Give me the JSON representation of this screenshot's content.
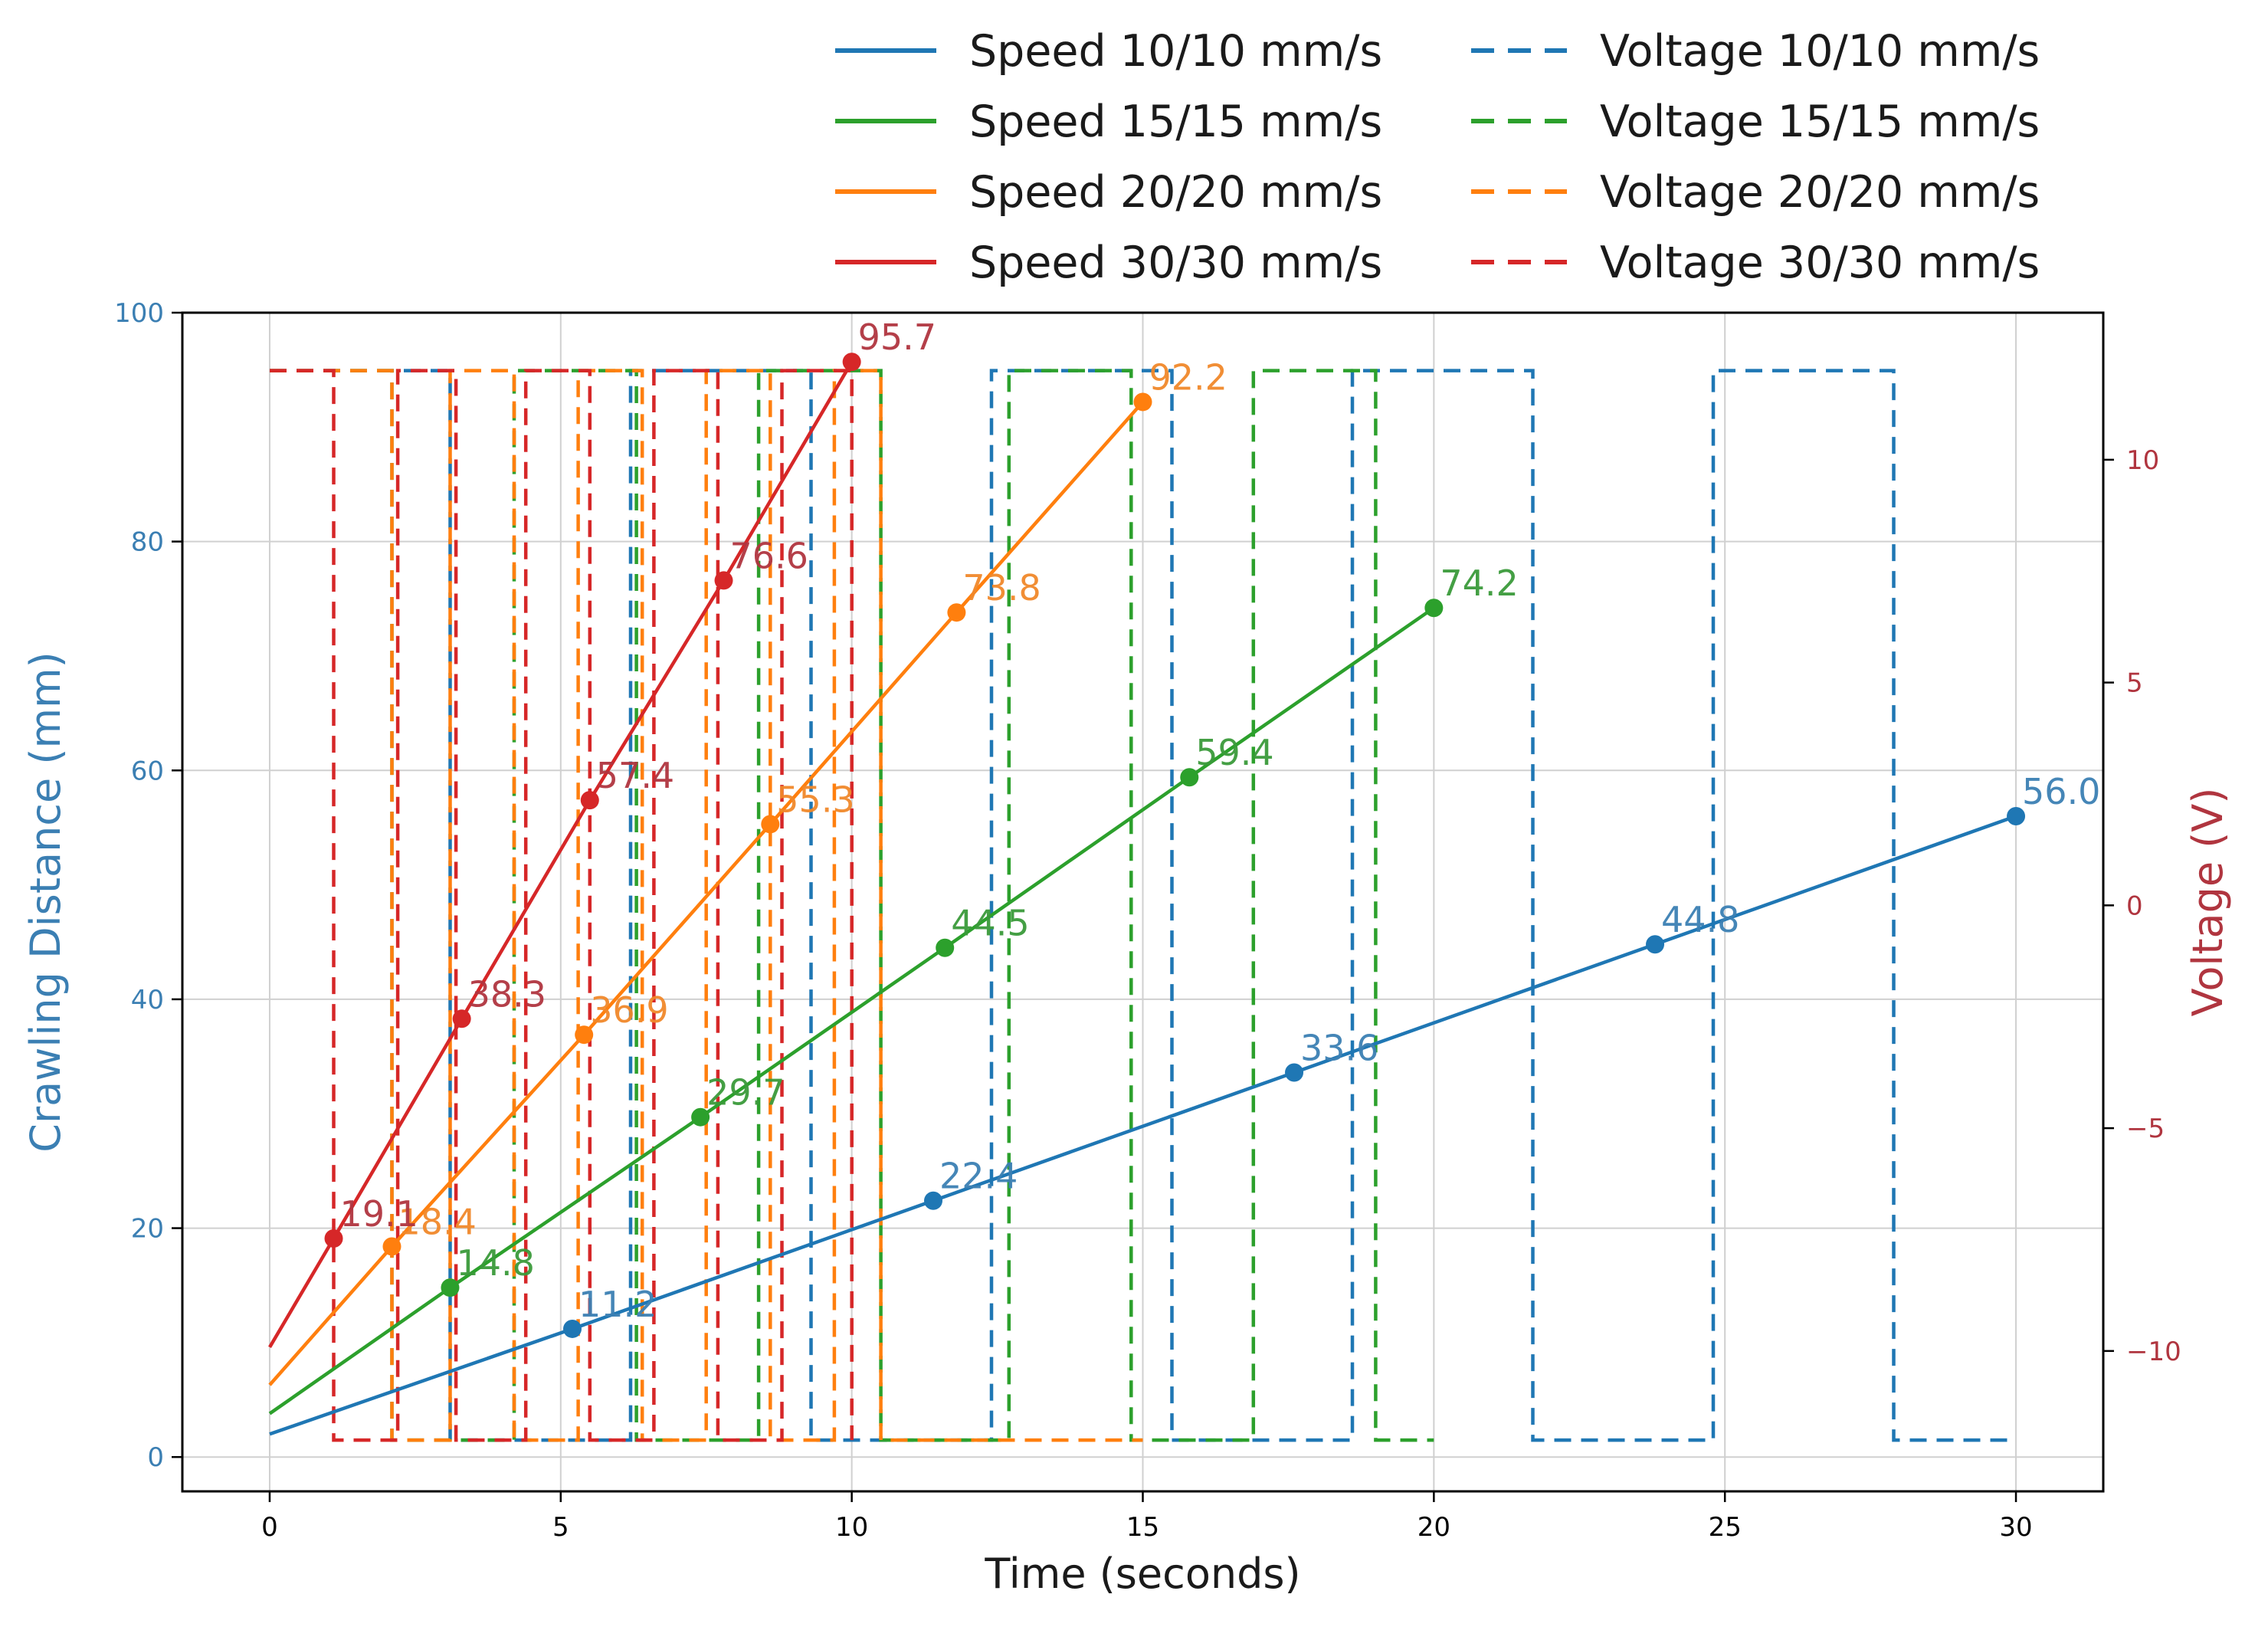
{
  "chart_data": {
    "type": "line",
    "xlabel": "Time (seconds)",
    "ylabel_left": "Crawling Distance (mm)",
    "ylabel_right": "Voltage (V)",
    "xlim": [
      -1.5,
      31.5
    ],
    "ylim_left": [
      -3,
      100
    ],
    "ylim_right": [
      -13.15,
      13.3
    ],
    "x_ticks": [
      0,
      5,
      10,
      15,
      20,
      25,
      30
    ],
    "y_left_ticks": [
      0,
      20,
      40,
      60,
      80,
      100
    ],
    "y_right_ticks": [
      -10,
      -5,
      0,
      5,
      10
    ],
    "y_right_tick_labels": [
      "−10",
      "−5",
      "0",
      "5",
      "10"
    ],
    "grid": true,
    "legend_position": "top-right, above plot",
    "voltage_levels": [
      -12,
      12
    ],
    "axis_colors": {
      "left": "#3b7fb3",
      "right": "#b0353f",
      "axis": "#000000",
      "grid": "#d0d0d0"
    },
    "series": [
      {
        "name": "Speed 10/10 mm/s",
        "color": "#1f77b4",
        "label_color": "#3b7fb3",
        "start_y": 2.0,
        "points": [
          {
            "x": 5.2,
            "y": 11.2,
            "label": "11.2"
          },
          {
            "x": 11.4,
            "y": 22.4,
            "label": "22.4"
          },
          {
            "x": 17.6,
            "y": 33.6,
            "label": "33.6"
          },
          {
            "x": 23.8,
            "y": 44.8,
            "label": "44.8"
          },
          {
            "x": 30.0,
            "y": 56.0,
            "label": "56.0"
          }
        ]
      },
      {
        "name": "Speed 15/15 mm/s",
        "color": "#2ca02c",
        "label_color": "#3a9a3a",
        "start_y": 3.8,
        "points": [
          {
            "x": 3.1,
            "y": 14.8,
            "label": "14.8"
          },
          {
            "x": 7.4,
            "y": 29.7,
            "label": "29.7"
          },
          {
            "x": 11.6,
            "y": 44.5,
            "label": "44.5"
          },
          {
            "x": 15.8,
            "y": 59.4,
            "label": "59.4"
          },
          {
            "x": 20.0,
            "y": 74.2,
            "label": "74.2"
          }
        ]
      },
      {
        "name": "Speed 20/20 mm/s",
        "color": "#ff7f0e",
        "label_color": "#f0882a",
        "start_y": 6.3,
        "points": [
          {
            "x": 2.1,
            "y": 18.4,
            "label": "18.4"
          },
          {
            "x": 5.4,
            "y": 36.9,
            "label": "36.9"
          },
          {
            "x": 8.6,
            "y": 55.3,
            "label": "55.3"
          },
          {
            "x": 11.8,
            "y": 73.8,
            "label": "73.8"
          },
          {
            "x": 15.0,
            "y": 92.2,
            "label": "92.2"
          }
        ]
      },
      {
        "name": "Speed 30/30 mm/s",
        "color": "#d62728",
        "label_color": "#b0353f",
        "start_y": 9.6,
        "points": [
          {
            "x": 1.1,
            "y": 19.1,
            "label": "19.1"
          },
          {
            "x": 3.3,
            "y": 38.3,
            "label": "38.3"
          },
          {
            "x": 5.5,
            "y": 57.4,
            "label": "57.4"
          },
          {
            "x": 7.8,
            "y": 76.6,
            "label": "76.6"
          },
          {
            "x": 10.0,
            "y": 95.7,
            "label": "95.7"
          }
        ]
      }
    ],
    "voltage_series": [
      {
        "name": "Voltage 10/10 mm/s",
        "color": "#1f77b4",
        "steps": [
          [
            0,
            12
          ],
          [
            3.1,
            12
          ],
          [
            3.1,
            -12
          ],
          [
            6.2,
            -12
          ],
          [
            6.2,
            12
          ],
          [
            9.3,
            12
          ],
          [
            9.3,
            -12
          ],
          [
            12.4,
            -12
          ],
          [
            12.4,
            12
          ],
          [
            15.5,
            12
          ],
          [
            15.5,
            -12
          ],
          [
            18.6,
            -12
          ],
          [
            18.6,
            12
          ],
          [
            21.7,
            12
          ],
          [
            21.7,
            -12
          ],
          [
            24.8,
            -12
          ],
          [
            24.8,
            12
          ],
          [
            27.9,
            12
          ],
          [
            27.9,
            -12
          ],
          [
            30,
            -12
          ]
        ]
      },
      {
        "name": "Voltage 15/15 mm/s",
        "color": "#2ca02c",
        "steps": [
          [
            0,
            12
          ],
          [
            2.1,
            12
          ],
          [
            2.1,
            -12
          ],
          [
            4.2,
            -12
          ],
          [
            4.2,
            12
          ],
          [
            6.3,
            12
          ],
          [
            6.3,
            -12
          ],
          [
            8.4,
            -12
          ],
          [
            8.4,
            12
          ],
          [
            10.5,
            12
          ],
          [
            10.5,
            -12
          ],
          [
            12.7,
            -12
          ],
          [
            12.7,
            12
          ],
          [
            14.8,
            12
          ],
          [
            14.8,
            -12
          ],
          [
            16.9,
            -12
          ],
          [
            16.9,
            12
          ],
          [
            19.0,
            12
          ],
          [
            19.0,
            -12
          ],
          [
            20,
            -12
          ]
        ]
      },
      {
        "name": "Voltage 20/20 mm/s",
        "color": "#ff7f0e",
        "steps": [
          [
            0,
            12
          ],
          [
            2.1,
            12
          ],
          [
            2.1,
            -12
          ],
          [
            3.1,
            -12
          ],
          [
            3.1,
            12
          ],
          [
            4.2,
            12
          ],
          [
            4.2,
            -12
          ],
          [
            5.3,
            -12
          ],
          [
            5.3,
            12
          ],
          [
            6.4,
            12
          ],
          [
            6.4,
            -12
          ],
          [
            7.5,
            -12
          ],
          [
            7.5,
            12
          ],
          [
            8.6,
            12
          ],
          [
            8.6,
            -12
          ],
          [
            9.7,
            -12
          ],
          [
            9.7,
            12
          ],
          [
            10.5,
            12
          ],
          [
            10.5,
            -12
          ],
          [
            15,
            -12
          ]
        ]
      },
      {
        "name": "Voltage 30/30 mm/s",
        "color": "#d62728",
        "steps": [
          [
            0,
            12
          ],
          [
            1.1,
            12
          ],
          [
            1.1,
            -12
          ],
          [
            2.2,
            -12
          ],
          [
            2.2,
            12
          ],
          [
            3.2,
            12
          ],
          [
            3.2,
            -12
          ],
          [
            4.4,
            -12
          ],
          [
            4.4,
            12
          ],
          [
            5.5,
            12
          ],
          [
            5.5,
            -12
          ],
          [
            6.6,
            -12
          ],
          [
            6.6,
            12
          ],
          [
            7.7,
            12
          ],
          [
            7.7,
            -12
          ],
          [
            8.8,
            -12
          ],
          [
            8.8,
            12
          ],
          [
            10.0,
            12
          ],
          [
            10.0,
            -12
          ]
        ]
      }
    ]
  }
}
